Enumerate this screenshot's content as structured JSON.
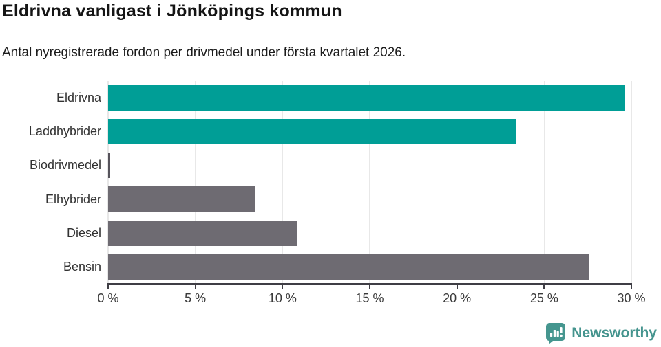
{
  "header": {
    "title": "Eldrivna vanligast i Jönköpings kommun",
    "subtitle": "Antal nyregistrerade fordon per drivmedel under första kvartalet 2026."
  },
  "chart_data": {
    "type": "bar",
    "orientation": "horizontal",
    "title": "Eldrivna vanligast i Jönköpings kommun",
    "subtitle": "Antal nyregistrerade fordon per drivmedel under första kvartalet 2026.",
    "categories": [
      "Eldrivna",
      "Laddhybrider",
      "Biodrivmedel",
      "Elhybrider",
      "Diesel",
      "Bensin"
    ],
    "values": [
      29.6,
      23.4,
      0.1,
      8.4,
      10.8,
      27.6
    ],
    "unit": "%",
    "bar_colors": [
      "#009E96",
      "#009E96",
      "#56535B",
      "#6E6B72",
      "#6E6B72",
      "#6E6B72"
    ],
    "xlabel": "",
    "ylabel": "",
    "xlim": [
      0,
      30
    ],
    "x_ticks": [
      0,
      5,
      10,
      15,
      20,
      25,
      30
    ],
    "x_tick_labels": [
      "0 %",
      "5 %",
      "10 %",
      "15 %",
      "20 %",
      "25 %",
      "30 %"
    ],
    "grid": true,
    "legend": false
  },
  "colors": {
    "accent_teal": "#009E96",
    "bar_gray": "#6E6B72",
    "thin_bar_dark": "#56535B",
    "gridline": "#E8E8E8",
    "axis": "#3F3E45",
    "logo_teal": "#45948E"
  },
  "footer": {
    "brand": "Newsworthy",
    "logo_icon": "bar-chart-speech-bubble-icon"
  }
}
